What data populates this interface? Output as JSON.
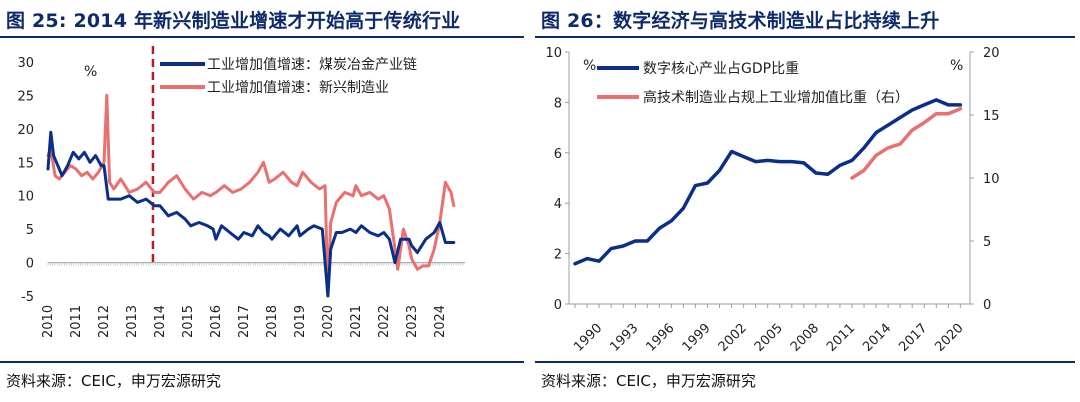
{
  "colors": {
    "navy": "#0a2f8a",
    "salmon": "#ea6f6f",
    "dashed_line": "#b81d1d",
    "title": "#0d2a6b"
  },
  "source": "资料来源：CEIC，申万宏源研究",
  "chart_data": [
    {
      "type": "line",
      "title": "图 25: 2014 年新兴制造业增速才开始高于传统行业",
      "unit": "%",
      "ylim": [
        -5,
        30
      ],
      "yticks": [
        "30",
        "25",
        "20",
        "15",
        "10",
        "5",
        "0",
        "-5"
      ],
      "x_tick_labels": [
        "2010",
        "2011",
        "2012",
        "2013",
        "2014",
        "2015",
        "2016",
        "2017",
        "2018",
        "2019",
        "2020",
        "2021",
        "2022",
        "2023",
        "2024"
      ],
      "reference_line": {
        "x": 2013.75,
        "style": "dashed"
      },
      "series": [
        {
          "name": "工业增加值增速：煤炭冶金产业链",
          "x": [
            2010,
            2010.1,
            2010.2,
            2010.35,
            2010.5,
            2010.7,
            2010.9,
            2011.1,
            2011.3,
            2011.5,
            2011.7,
            2011.9,
            2012.0,
            2012.15,
            2012.3,
            2012.6,
            2012.9,
            2013.2,
            2013.5,
            2013.8,
            2014.0,
            2014.3,
            2014.6,
            2014.9,
            2015.1,
            2015.4,
            2015.7,
            2015.9,
            2016.0,
            2016.2,
            2016.5,
            2016.8,
            2017.0,
            2017.3,
            2017.5,
            2017.7,
            2017.9,
            2018.0,
            2018.3,
            2018.6,
            2018.9,
            2019.0,
            2019.3,
            2019.5,
            2019.8,
            2020.0,
            2020.1,
            2020.3,
            2020.5,
            2020.8,
            2021.0,
            2021.2,
            2021.5,
            2021.8,
            2022.0,
            2022.2,
            2022.4,
            2022.6,
            2022.9,
            2023.0,
            2023.2,
            2023.5,
            2023.8,
            2024.0,
            2024.2,
            2024.5
          ],
          "y": [
            14,
            19.5,
            16,
            14.5,
            13,
            14.5,
            16.5,
            15.5,
            16.5,
            15,
            16,
            14.5,
            14.5,
            9.5,
            9.5,
            9.5,
            10,
            9,
            9.5,
            8.5,
            8.5,
            7,
            7.5,
            6.5,
            5.5,
            6,
            5.5,
            5,
            3.5,
            5.5,
            4.5,
            3.5,
            4.5,
            4,
            5.5,
            4.5,
            4,
            3.5,
            5,
            4,
            5.5,
            4,
            5,
            5.5,
            5,
            -5,
            2,
            4.5,
            4.5,
            5,
            4.5,
            5.5,
            4.5,
            4,
            4.5,
            3.5,
            0,
            3.5,
            3.5,
            2.5,
            1.5,
            3.5,
            4.5,
            6,
            3,
            3
          ]
        },
        {
          "name": "工业增加值增速：新兴制造业",
          "x": [
            2010,
            2010.1,
            2010.25,
            2010.4,
            2010.6,
            2010.8,
            2011.0,
            2011.2,
            2011.4,
            2011.6,
            2011.8,
            2012.0,
            2012.1,
            2012.2,
            2012.35,
            2012.6,
            2012.9,
            2013.2,
            2013.5,
            2013.8,
            2014.0,
            2014.3,
            2014.6,
            2014.9,
            2015.2,
            2015.5,
            2015.8,
            2016.0,
            2016.3,
            2016.6,
            2016.9,
            2017.2,
            2017.5,
            2017.7,
            2017.9,
            2018.1,
            2018.4,
            2018.7,
            2018.9,
            2019.1,
            2019.4,
            2019.7,
            2019.9,
            2020.0,
            2020.1,
            2020.3,
            2020.6,
            2020.9,
            2021.0,
            2021.2,
            2021.5,
            2021.8,
            2022.0,
            2022.2,
            2022.5,
            2022.7,
            2022.9,
            2023.0,
            2023.2,
            2023.4,
            2023.6,
            2023.8,
            2024.0,
            2024.2,
            2024.4,
            2024.5
          ],
          "y": [
            16,
            17,
            13,
            12.5,
            13.5,
            14.5,
            14,
            13,
            13.5,
            12.5,
            13.5,
            15,
            25,
            12,
            11,
            12.5,
            10.5,
            11,
            12,
            10.5,
            10.5,
            12,
            13,
            11,
            9.5,
            10.5,
            10,
            10.5,
            11.5,
            10.5,
            11,
            12,
            13.5,
            15,
            12,
            12.5,
            13.5,
            12,
            11.5,
            13.5,
            12,
            11,
            11.5,
            -5,
            6,
            9,
            10.5,
            10,
            11.5,
            10,
            10.5,
            9.5,
            10,
            8,
            -1,
            5,
            2.5,
            0.5,
            -1,
            -0.5,
            -0.5,
            2,
            6,
            12,
            10.5,
            8.5
          ]
        }
      ]
    },
    {
      "type": "line",
      "title": "图 26：数字经济与高技术制造业占比持续上升",
      "left_unit": "%",
      "right_unit": "%",
      "ylim_left": [
        0,
        10
      ],
      "ylim_right": [
        0,
        20
      ],
      "yticks_left": [
        "10",
        "8",
        "6",
        "4",
        "2",
        "0"
      ],
      "yticks_right": [
        "20",
        "15",
        "10",
        "5",
        "0"
      ],
      "x_tick_labels": [
        "1990",
        "1993",
        "1996",
        "1999",
        "2002",
        "2005",
        "2008",
        "2011",
        "2014",
        "2017",
        "2020"
      ],
      "series": [
        {
          "name": "数字核心产业占GDP比重",
          "axis": "left",
          "x": [
            1990,
            1991,
            1992,
            1993,
            1994,
            1995,
            1996,
            1997,
            1998,
            1999,
            2000,
            2001,
            2002,
            2003,
            2004,
            2005,
            2006,
            2007,
            2008,
            2009,
            2010,
            2011,
            2012,
            2013,
            2014,
            2015,
            2016,
            2017,
            2018,
            2019,
            2020,
            2021,
            2022
          ],
          "y": [
            1.6,
            1.8,
            1.7,
            2.2,
            2.3,
            2.5,
            2.5,
            3.0,
            3.3,
            3.8,
            4.7,
            4.8,
            5.3,
            6.05,
            5.85,
            5.65,
            5.7,
            5.65,
            5.65,
            5.6,
            5.2,
            5.15,
            5.5,
            5.7,
            6.2,
            6.8,
            7.1,
            7.4,
            7.7,
            7.9,
            8.1,
            7.9,
            7.9
          ]
        },
        {
          "name": "高技术制造业占规上工业增加值比重（右）",
          "axis": "right",
          "x": [
            2013,
            2014,
            2015,
            2016,
            2017,
            2018,
            2019,
            2020,
            2021,
            2022
          ],
          "y": [
            10.0,
            10.6,
            11.8,
            12.4,
            12.7,
            13.8,
            14.4,
            15.1,
            15.1,
            15.5
          ]
        }
      ]
    }
  ]
}
